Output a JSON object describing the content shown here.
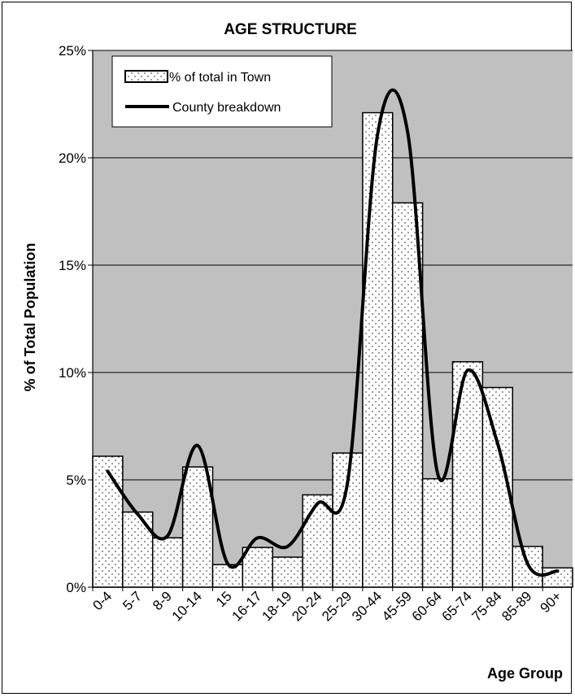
{
  "chart_data": {
    "type": "bar",
    "title": "AGE STRUCTURE",
    "xlabel": "Age Group",
    "ylabel": "% of Total Population",
    "ylim": [
      0,
      25
    ],
    "y_ticks": [
      "0%",
      "5%",
      "10%",
      "15%",
      "20%",
      "25%"
    ],
    "grid": true,
    "legend_position": "top-left",
    "colors": {
      "plot_background": "#c0c0c0",
      "bar_fill": "#ffffff",
      "bar_stroke": "#000000",
      "line": "#000000"
    },
    "categories": [
      "0-4",
      "5-7",
      "8-9",
      "10-14",
      "15",
      "16-17",
      "18-19",
      "20-24",
      "25-29",
      "30-44",
      "45-59",
      "60-64",
      "65-74",
      "75-84",
      "85-89",
      "90+"
    ],
    "series": [
      {
        "name": "% of total in Town",
        "type": "bar",
        "values": [
          6.1,
          3.5,
          2.3,
          5.6,
          1.05,
          1.85,
          1.4,
          4.3,
          6.25,
          22.1,
          17.9,
          5.05,
          10.5,
          9.3,
          1.9,
          0.9
        ]
      },
      {
        "name": "County breakdown",
        "type": "line",
        "smooth": true,
        "values": [
          5.4,
          3.4,
          2.4,
          6.6,
          1.1,
          2.3,
          1.9,
          3.9,
          4.9,
          21.1,
          21.2,
          5.3,
          10.1,
          6.7,
          1.1,
          0.75
        ]
      }
    ]
  }
}
